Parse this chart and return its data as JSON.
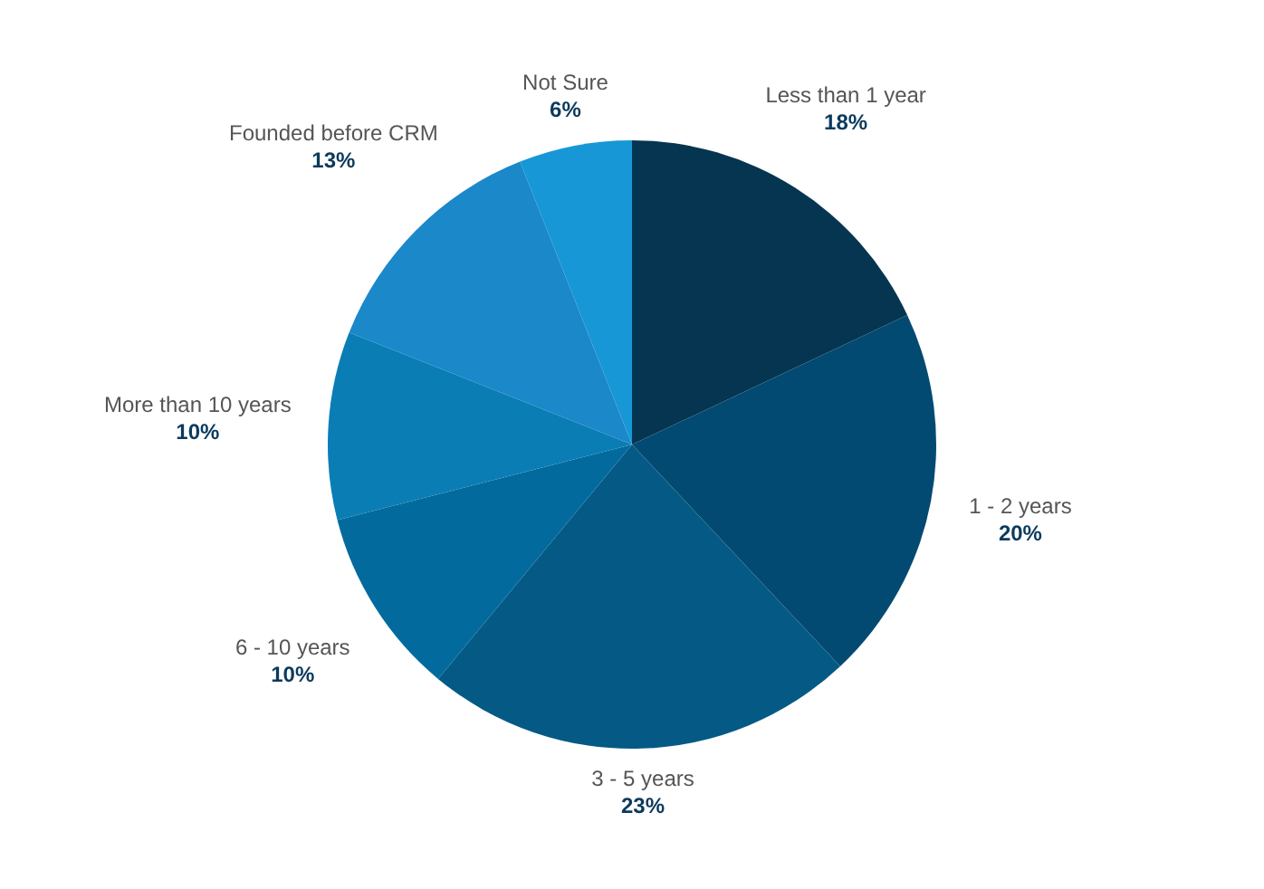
{
  "chart_data": {
    "type": "pie",
    "categories": [
      "Less than 1 year",
      "1 - 2 years",
      "3 - 5 years",
      "6 - 10 years",
      "More than 10 years",
      "Founded before CRM",
      "Not Sure"
    ],
    "values": [
      18,
      20,
      23,
      10,
      10,
      13,
      6
    ],
    "colors": [
      "#063551",
      "#034a72",
      "#055a85",
      "#036a9e",
      "#0a7db5",
      "#1a88c9",
      "#1797d6"
    ],
    "value_labels": [
      "18%",
      "20%",
      "23%",
      "10%",
      "10%",
      "13%",
      "6%"
    ],
    "legend": false
  }
}
